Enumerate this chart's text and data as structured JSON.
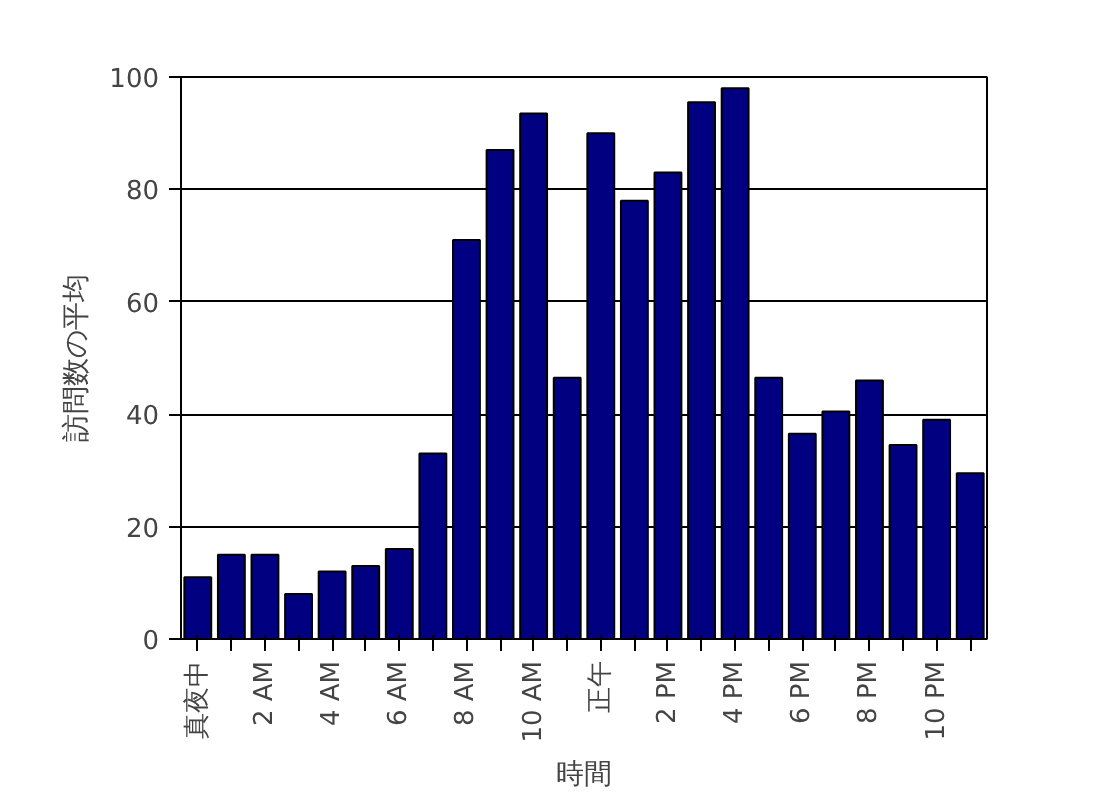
{
  "chart_data": {
    "type": "bar",
    "xlabel": "時間",
    "ylabel": "訪問数の平均",
    "categories": [
      "真夜中",
      null,
      "2 AM",
      null,
      "4 AM",
      null,
      "6 AM",
      null,
      "8 AM",
      null,
      "10 AM",
      null,
      "正午",
      null,
      "2 PM",
      null,
      "4 PM",
      null,
      "6 PM",
      null,
      "8 PM",
      null,
      "10 PM",
      null
    ],
    "values": [
      11,
      15,
      15,
      8,
      12,
      13,
      16,
      33,
      71,
      87,
      93.5,
      46.5,
      90,
      78,
      83,
      95.5,
      98,
      46.5,
      36.5,
      40.5,
      46,
      34.5,
      39,
      29.5
    ],
    "color": "#000080",
    "ylim": [
      0,
      100
    ],
    "yticks": [
      0,
      20,
      40,
      60,
      80,
      100
    ],
    "grid": "y"
  }
}
